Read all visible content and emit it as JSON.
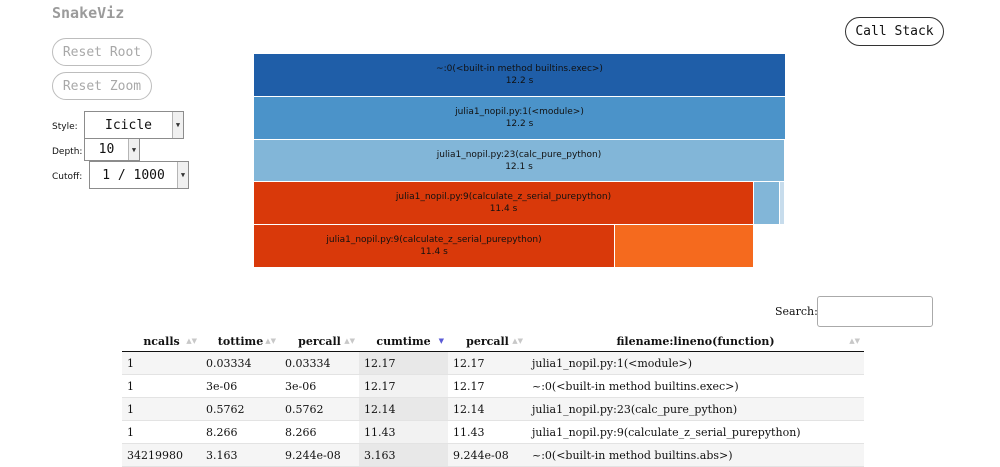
{
  "app": {
    "title": "SnakeViz"
  },
  "controls": {
    "reset_root": "Reset Root",
    "reset_zoom": "Reset Zoom",
    "call_stack": "Call Stack",
    "style_label": "Style:",
    "style_value": "Icicle",
    "depth_label": "Depth:",
    "depth_value": "10",
    "cutoff_label": "Cutoff:",
    "cutoff_value": "1 / 1000"
  },
  "icicle": {
    "blocks": [
      {
        "name": "~:0(<built-in method builtins.exec>)",
        "time": "12.2 s",
        "color": "#1f5ea8"
      },
      {
        "name": "julia1_nopil.py:1(<module>)",
        "time": "12.2 s",
        "color": "#4b93c9"
      },
      {
        "name": "julia1_nopil.py:23(calc_pure_python)",
        "time": "12.1 s",
        "color": "#82b6d8"
      },
      {
        "name": "julia1_nopil.py:9(calculate_z_serial_purepython)",
        "time": "11.4 s",
        "color": "#d9390a"
      },
      {
        "name": "julia1_nopil.py:9(calculate_z_serial_purepython)",
        "time": "11.4 s",
        "color": "#d9390a"
      }
    ],
    "minor_colors": {
      "light_blue": "#82b6d8",
      "pale_blue": "#c7dcec",
      "orange": "#f56a1e"
    }
  },
  "search": {
    "label": "Search:",
    "placeholder": ""
  },
  "table": {
    "columns": [
      "ncalls",
      "tottime",
      "percall",
      "cumtime",
      "percall",
      "filename:lineno(function)"
    ],
    "sorted_column": "cumtime",
    "rows": [
      [
        "1",
        "0.03334",
        "0.03334",
        "12.17",
        "12.17",
        "julia1_nopil.py:1(<module>)"
      ],
      [
        "1",
        "3e-06",
        "3e-06",
        "12.17",
        "12.17",
        "~:0(<built-in method builtins.exec>)"
      ],
      [
        "1",
        "0.5762",
        "0.5762",
        "12.14",
        "12.14",
        "julia1_nopil.py:23(calc_pure_python)"
      ],
      [
        "1",
        "8.266",
        "8.266",
        "11.43",
        "11.43",
        "julia1_nopil.py:9(calculate_z_serial_purepython)"
      ],
      [
        "34219980",
        "3.163",
        "9.244e-08",
        "3.163",
        "9.244e-08",
        "~:0(<built-in method builtins.abs>)"
      ]
    ]
  }
}
